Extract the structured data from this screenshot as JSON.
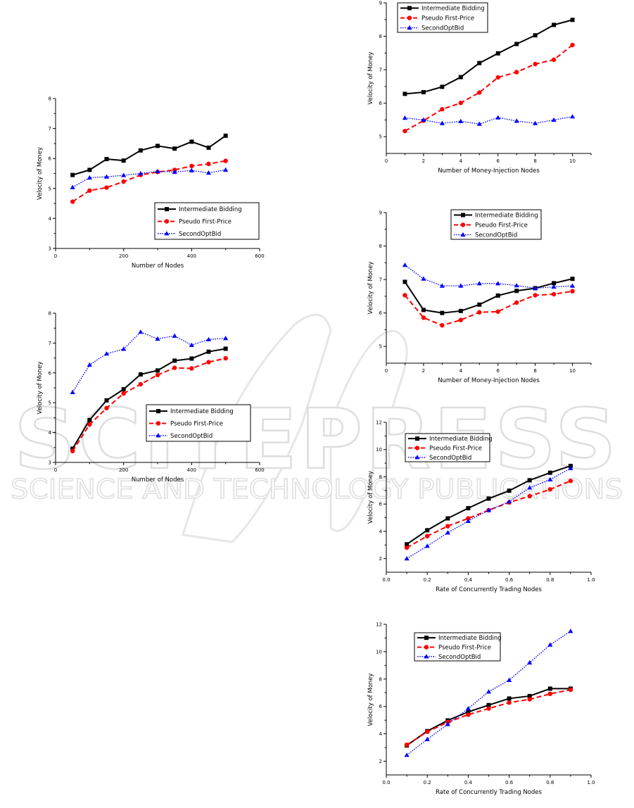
{
  "watermark": {
    "line1": "SCITEPRESS",
    "line2": "SCIENCE AND TECHNOLOGY PUBLICATIONS",
    "color": "#e3e3e3"
  },
  "series_styles": [
    {
      "name": "Intermediate Bidding",
      "color": "#000000",
      "marker": "square",
      "dash": "solid"
    },
    {
      "name": "Pseudo First-Price",
      "color": "#ff0000",
      "marker": "circle",
      "dash": "dashed"
    },
    {
      "name": "SecondOptBid",
      "color": "#0000ff",
      "marker": "triangle",
      "dash": "dotted"
    }
  ],
  "chart_data": [
    {
      "type": "line",
      "title": "",
      "xlabel": "Number of Nodes",
      "ylabel": "Velocity of Money",
      "xlim": [
        0,
        600
      ],
      "ylim": [
        3,
        8
      ],
      "xticks": [
        0,
        200,
        400,
        600
      ],
      "yticks": [
        3,
        4,
        5,
        6,
        7,
        8
      ],
      "grid": false,
      "legend_position": "bottom-right",
      "x": [
        50,
        100,
        150,
        200,
        250,
        300,
        350,
        400,
        450,
        500
      ],
      "series": [
        {
          "name": "Intermediate Bidding",
          "values": [
            5.45,
            5.62,
            5.98,
            5.93,
            6.27,
            6.42,
            6.33,
            6.56,
            6.36,
            6.76
          ]
        },
        {
          "name": "Pseudo First-Price",
          "values": [
            4.56,
            4.93,
            5.03,
            5.23,
            5.45,
            5.55,
            5.62,
            5.75,
            5.82,
            5.92
          ]
        },
        {
          "name": "SecondOptBid",
          "values": [
            5.04,
            5.36,
            5.39,
            5.44,
            5.5,
            5.57,
            5.55,
            5.6,
            5.52,
            5.62
          ]
        }
      ]
    },
    {
      "type": "line",
      "title": "",
      "xlabel": "Number of Nodes",
      "ylabel": "Velocity of Money",
      "xlim": [
        0,
        600
      ],
      "ylim": [
        3,
        8
      ],
      "xticks": [
        0,
        200,
        400,
        600
      ],
      "yticks": [
        3,
        4,
        5,
        6,
        7,
        8
      ],
      "grid": false,
      "legend_position": "lower-right",
      "x": [
        50,
        100,
        150,
        200,
        250,
        300,
        350,
        400,
        450,
        500
      ],
      "series": [
        {
          "name": "Intermediate Bidding",
          "values": [
            3.46,
            4.42,
            5.08,
            5.45,
            5.95,
            6.08,
            6.41,
            6.48,
            6.71,
            6.81
          ]
        },
        {
          "name": "Pseudo First-Price",
          "values": [
            3.38,
            4.27,
            4.82,
            5.31,
            5.62,
            5.93,
            6.17,
            6.15,
            6.36,
            6.49
          ]
        },
        {
          "name": "SecondOptBid",
          "values": [
            5.35,
            6.27,
            6.64,
            6.8,
            7.37,
            7.14,
            7.24,
            6.93,
            7.12,
            7.16
          ]
        }
      ]
    },
    {
      "type": "line",
      "title": "",
      "xlabel": "Number of Money-Injection Nodes",
      "ylabel": "Velocity of Money",
      "xlim": [
        0,
        11
      ],
      "ylim": [
        4.5,
        9
      ],
      "xticks": [
        0,
        2,
        4,
        6,
        8,
        10
      ],
      "yticks": [
        5,
        6,
        7,
        8,
        9
      ],
      "grid": false,
      "legend_position": "top-left",
      "x": [
        1,
        2,
        3,
        4,
        5,
        6,
        7,
        8,
        9,
        10
      ],
      "series": [
        {
          "name": "Intermediate Bidding",
          "values": [
            6.28,
            6.33,
            6.49,
            6.78,
            7.2,
            7.49,
            7.77,
            8.03,
            8.34,
            8.49
          ]
        },
        {
          "name": "Pseudo First-Price",
          "values": [
            5.17,
            5.48,
            5.82,
            6.01,
            6.32,
            6.77,
            6.93,
            7.17,
            7.3,
            7.74
          ]
        },
        {
          "name": "SecondOptBid",
          "values": [
            5.56,
            5.5,
            5.4,
            5.46,
            5.38,
            5.57,
            5.47,
            5.4,
            5.5,
            5.6
          ]
        }
      ]
    },
    {
      "type": "line",
      "title": "",
      "xlabel": "Number of Money-Injection Nodes",
      "ylabel": "Velocity of Money",
      "xlim": [
        0,
        11
      ],
      "ylim": [
        4.5,
        9
      ],
      "xticks": [
        0,
        2,
        4,
        6,
        8,
        10
      ],
      "yticks": [
        5,
        6,
        7,
        8,
        9
      ],
      "grid": false,
      "legend_position": "top-right",
      "x": [
        1,
        2,
        3,
        4,
        5,
        6,
        7,
        8,
        9,
        10
      ],
      "series": [
        {
          "name": "Intermediate Bidding",
          "values": [
            6.93,
            6.09,
            6.0,
            6.06,
            6.25,
            6.52,
            6.66,
            6.74,
            6.89,
            7.02
          ]
        },
        {
          "name": "Pseudo First-Price",
          "values": [
            6.53,
            5.86,
            5.63,
            5.79,
            6.02,
            6.04,
            6.31,
            6.53,
            6.56,
            6.65
          ]
        },
        {
          "name": "SecondOptBid",
          "values": [
            7.43,
            7.02,
            6.81,
            6.81,
            6.88,
            6.88,
            6.82,
            6.74,
            6.78,
            6.81
          ]
        }
      ]
    },
    {
      "type": "line",
      "title": "",
      "xlabel": "Rate of Concurrently Trading Nodes",
      "ylabel": "Velocity of Money",
      "xlim": [
        0.0,
        1.0
      ],
      "ylim": [
        1,
        12
      ],
      "xticks": [
        0.0,
        0.2,
        0.4,
        0.6,
        0.8,
        1.0
      ],
      "yticks": [
        2,
        4,
        6,
        8,
        10,
        12
      ],
      "grid": false,
      "legend_position": "top-left",
      "x": [
        0.1,
        0.2,
        0.3,
        0.4,
        0.5,
        0.6,
        0.7,
        0.8,
        0.9
      ],
      "series": [
        {
          "name": "Intermediate Bidding",
          "values": [
            3.05,
            4.08,
            4.95,
            5.7,
            6.4,
            6.98,
            7.75,
            8.3,
            8.8
          ]
        },
        {
          "name": "Pseudo First-Price",
          "values": [
            2.8,
            3.65,
            4.38,
            4.95,
            5.55,
            6.12,
            6.58,
            7.08,
            7.7
          ]
        },
        {
          "name": "SecondOptBid",
          "values": [
            2.0,
            2.92,
            3.9,
            4.75,
            5.55,
            6.18,
            7.2,
            7.8,
            8.62
          ]
        }
      ]
    },
    {
      "type": "line",
      "title": "",
      "xlabel": "Rate of Concurrently Trading Nodes",
      "ylabel": "Velocity of Money",
      "xlim": [
        0.0,
        1.0
      ],
      "ylim": [
        1,
        12
      ],
      "xticks": [
        0.0,
        0.2,
        0.4,
        0.6,
        0.8,
        1.0
      ],
      "yticks": [
        2,
        4,
        6,
        8,
        10,
        12
      ],
      "grid": false,
      "legend_position": "top-left",
      "x": [
        0.1,
        0.2,
        0.3,
        0.4,
        0.5,
        0.6,
        0.7,
        0.8,
        0.9
      ],
      "series": [
        {
          "name": "Intermediate Bidding",
          "values": [
            3.15,
            4.2,
            4.98,
            5.6,
            6.1,
            6.58,
            6.76,
            7.3,
            7.3
          ]
        },
        {
          "name": "Pseudo First-Price",
          "values": [
            3.2,
            4.15,
            4.85,
            5.4,
            5.85,
            6.28,
            6.52,
            6.92,
            7.22
          ]
        },
        {
          "name": "SecondOptBid",
          "values": [
            2.45,
            3.6,
            4.7,
            5.85,
            7.08,
            7.92,
            9.2,
            10.5,
            11.5
          ]
        }
      ]
    }
  ]
}
